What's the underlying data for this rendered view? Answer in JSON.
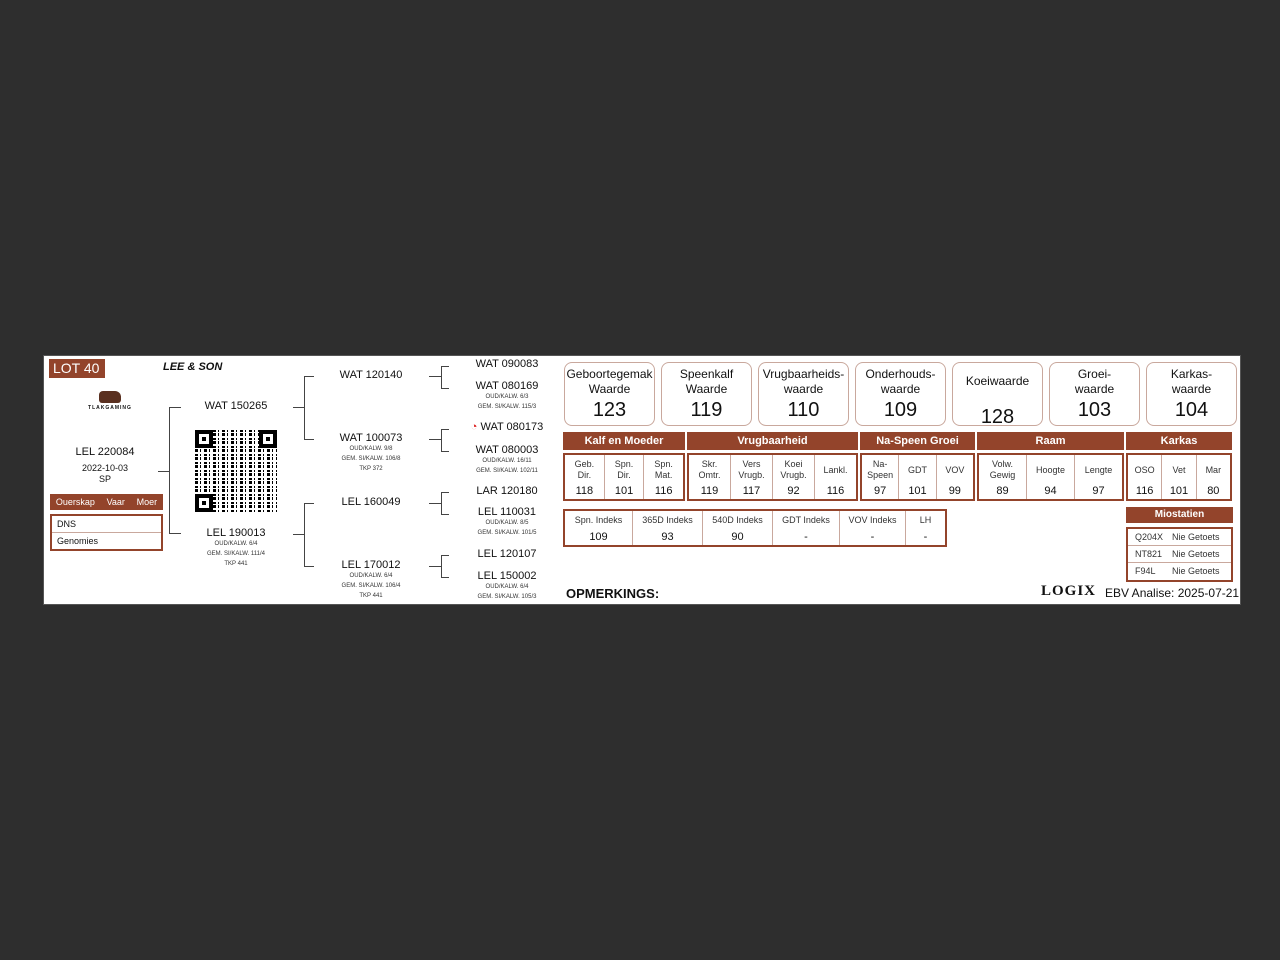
{
  "lot": "LOT 40",
  "breeder": "LEE & SON",
  "logo_text": "TLAKGAMING",
  "animal": {
    "id": "LEL 220084",
    "birth_date": "2022-10-03",
    "sex": "SP"
  },
  "parentage": {
    "header": [
      "Ouerskap",
      "Vaar",
      "Moer"
    ],
    "rows": [
      "DNS",
      "Genomies"
    ]
  },
  "pedigree": {
    "sire": {
      "id": "WAT 150265"
    },
    "dam": {
      "id": "LEL 190013",
      "lines": [
        "OUD/KALW. 6/4",
        "GEM. SI/KALW. 111/4",
        "TKP 441"
      ]
    },
    "ss": {
      "id": "WAT 120140"
    },
    "sd": {
      "id": "WAT 100073",
      "lines": [
        "OUD/KALW. 9/8",
        "GEM. SI/KALW. 106/8",
        "TKP 372"
      ]
    },
    "ds": {
      "id": "LEL 160049"
    },
    "dd": {
      "id": "LEL 170012",
      "lines": [
        "OUD/KALW. 6/4",
        "GEM. SI/KALW. 106/4",
        "TKP 441"
      ]
    },
    "sss": {
      "id": "WAT 090083"
    },
    "ssd": {
      "id": "WAT 080169",
      "lines": [
        "OUD/KALW. 6/3",
        "GEM. SI/KALW. 115/3"
      ]
    },
    "sds": {
      "id": "WAT 080173"
    },
    "sdd": {
      "id": "WAT 080003",
      "lines": [
        "OUD/KALW. 16/11",
        "GEM. SI/KALW. 102/11"
      ]
    },
    "dss": {
      "id": "LAR 120180"
    },
    "dsd": {
      "id": "LEL 110031",
      "lines": [
        "OUD/KALW. 8/5",
        "GEM. SI/KALW. 101/5"
      ]
    },
    "dds": {
      "id": "LEL 120107"
    },
    "ddd": {
      "id": "LEL 150002",
      "lines": [
        "OUD/KALW. 6/4",
        "GEM. SI/KALW. 105/3"
      ]
    }
  },
  "values": [
    {
      "l1": "Geboortegemak",
      "l2": "Waarde",
      "v": "123"
    },
    {
      "l1": "Speenkalf",
      "l2": "Waarde",
      "v": "119"
    },
    {
      "l1": "Vrugbaarheids-",
      "l2": "waarde",
      "v": "110"
    },
    {
      "l1": "Onderhouds-",
      "l2": "waarde",
      "v": "109"
    },
    {
      "l1": "Koeiwaarde",
      "l2": "",
      "v": "128"
    },
    {
      "l1": "Groei-",
      "l2": "waarde",
      "v": "103"
    },
    {
      "l1": "Karkas-",
      "l2": "waarde",
      "v": "104"
    }
  ],
  "groups": [
    {
      "title": "Kalf en Moeder",
      "cells": [
        {
          "l": "Geb.\nDir.",
          "v": "118"
        },
        {
          "l": "Spn.\nDir.",
          "v": "101"
        },
        {
          "l": "Spn.\nMat.",
          "v": "116"
        }
      ]
    },
    {
      "title": "Vrugbaarheid",
      "cells": [
        {
          "l": "Skr.\nOmtr.",
          "v": "119"
        },
        {
          "l": "Vers\nVrugb.",
          "v": "117"
        },
        {
          "l": "Koei\nVrugb.",
          "v": "92"
        },
        {
          "l": "Lankl.",
          "v": "116"
        }
      ]
    },
    {
      "title": "Na-Speen Groei",
      "cells": [
        {
          "l": "Na-\nSpeen",
          "v": "97"
        },
        {
          "l": "GDT",
          "v": "101"
        },
        {
          "l": "VOV",
          "v": "99"
        }
      ]
    },
    {
      "title": "Raam",
      "cells": [
        {
          "l": "Volw.\nGewig",
          "v": "89"
        },
        {
          "l": "Hoogte",
          "v": "94"
        },
        {
          "l": "Lengte",
          "v": "97"
        }
      ]
    },
    {
      "title": "Karkas",
      "cells": [
        {
          "l": "OSO",
          "v": "116"
        },
        {
          "l": "Vet",
          "v": "101"
        },
        {
          "l": "Mar",
          "v": "80"
        }
      ]
    }
  ],
  "indexes": [
    {
      "l": "Spn. Indeks",
      "v": "109"
    },
    {
      "l": "365D Indeks",
      "v": "93"
    },
    {
      "l": "540D Indeks",
      "v": "90"
    },
    {
      "l": "GDT Indeks",
      "v": "-"
    },
    {
      "l": "VOV Indeks",
      "v": "-"
    },
    {
      "l": "LH",
      "v": "-"
    }
  ],
  "myostatin": {
    "title": "Miostatien",
    "rows": [
      {
        "k": "Q204X",
        "v": "Nie Getoets"
      },
      {
        "k": "NT821",
        "v": "Nie Getoets"
      },
      {
        "k": "F94L",
        "v": "Nie Getoets"
      }
    ]
  },
  "remarks_label": "OPMERKINGS:",
  "brand": "LOGIX",
  "analysis": "EBV Analise: 2025-07-21",
  "colors": {
    "accent": "#93442b",
    "border_light": "#c9a89d"
  }
}
